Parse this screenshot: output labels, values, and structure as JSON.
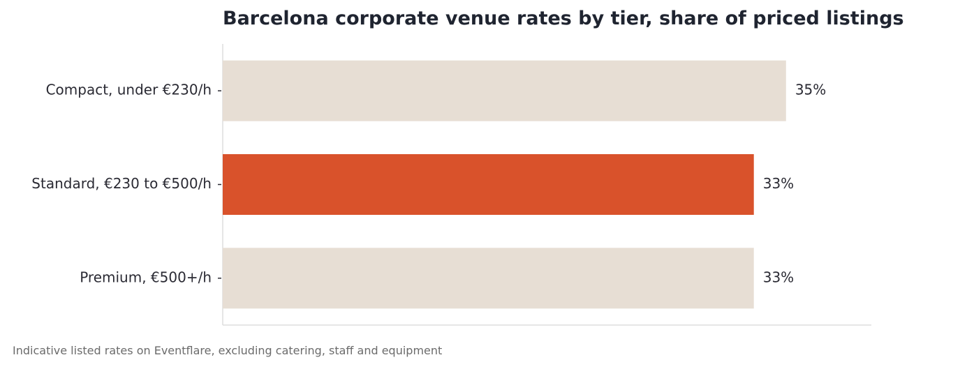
{
  "chart_data": {
    "type": "bar",
    "orientation": "horizontal",
    "title": "Barcelona corporate venue rates by tier, share of priced listings",
    "categories": [
      "Compact, under €230/h",
      "Standard, €230 to €500/h",
      "Premium, €500+/h"
    ],
    "values": [
      35,
      33,
      33
    ],
    "value_labels": [
      "35%",
      "33%",
      "33%"
    ],
    "highlight_index": 1,
    "xlim": [
      0,
      40.3
    ],
    "grid": false,
    "legend": "none",
    "xlabel": "",
    "ylabel": ""
  },
  "footnote": "Indicative listed rates on Eventflare, excluding catering, staff and equipment",
  "colors": {
    "bar_default": "#e7ded4",
    "bar_highlight": "#d9522b",
    "axis": "#dddddd",
    "text": "#2a2a33"
  }
}
